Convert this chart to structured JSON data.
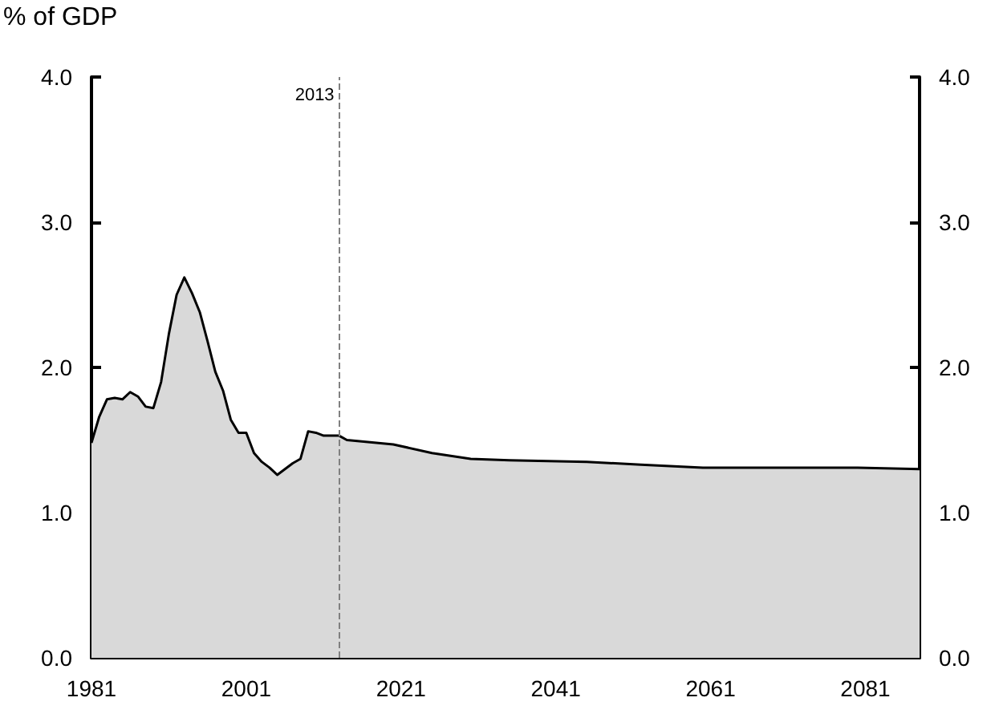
{
  "chart_data": {
    "type": "area",
    "ylabel": "% of GDP",
    "x": [
      1981,
      1982,
      1983,
      1984,
      1985,
      1986,
      1987,
      1988,
      1989,
      1990,
      1991,
      1992,
      1993,
      1994,
      1995,
      1996,
      1997,
      1998,
      1999,
      2000,
      2001,
      2002,
      2003,
      2004,
      2005,
      2006,
      2007,
      2008,
      2009,
      2010,
      2011,
      2012,
      2013,
      2014,
      2020,
      2025,
      2030,
      2035,
      2045,
      2052,
      2060,
      2070,
      2080,
      2088
    ],
    "series": [
      {
        "color": "#d9d9d9",
        "values": [
          1.48,
          1.66,
          1.78,
          1.79,
          1.78,
          1.83,
          1.8,
          1.73,
          1.72,
          1.9,
          2.23,
          2.5,
          2.62,
          2.51,
          2.38,
          2.18,
          1.97,
          1.84,
          1.64,
          1.55,
          1.55,
          1.41,
          1.35,
          1.31,
          1.26,
          1.3,
          1.34,
          1.37,
          1.56,
          1.55,
          1.53,
          1.53,
          1.53,
          1.5,
          1.47,
          1.41,
          1.37,
          1.36,
          1.35,
          1.33,
          1.31,
          1.31,
          1.31,
          1.3
        ]
      }
    ],
    "xlim": [
      1981,
      2088
    ],
    "xticks": [
      1981,
      2001,
      2021,
      2041,
      2061,
      2081
    ],
    "ylim": [
      0,
      4
    ],
    "yticks": [
      {
        "value": 0,
        "label": "0.0"
      },
      {
        "value": 1,
        "label": "1.0"
      },
      {
        "value": 2,
        "label": "2.0"
      },
      {
        "value": 3,
        "label": "3.0"
      },
      {
        "value": 4,
        "label": "4.0"
      }
    ],
    "y2lim": [
      0,
      4
    ],
    "y2ticks": [
      {
        "value": 0,
        "label": "0.0"
      },
      {
        "value": 1,
        "label": "1.0"
      },
      {
        "value": 2,
        "label": "2.0"
      },
      {
        "value": 3,
        "label": "3.0"
      },
      {
        "value": 4,
        "label": "4.0"
      }
    ],
    "ref_lines": [
      {
        "axis": "x",
        "value": 2013,
        "label": "2013",
        "color": "#808080",
        "line_style": "dashed"
      }
    ],
    "grid": false
  }
}
